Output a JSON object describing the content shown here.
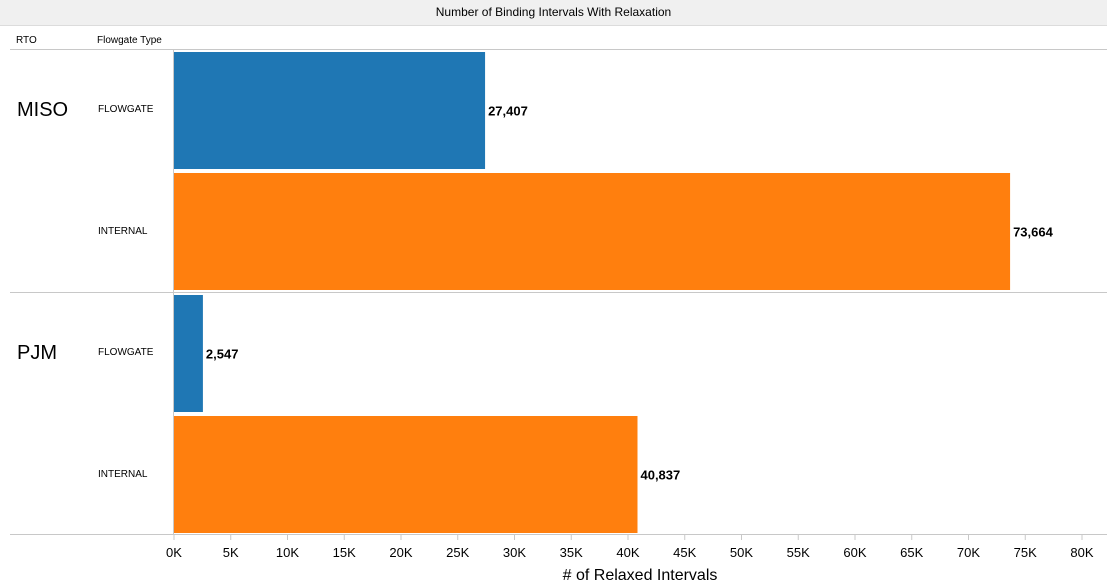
{
  "chart_data": {
    "type": "bar",
    "orientation": "horizontal",
    "title": "Number of Binding Intervals With Relaxation",
    "row_headers": [
      "RTO",
      "Flowgate Type"
    ],
    "groups": [
      {
        "name": "MISO",
        "bars": [
          {
            "category": "FLOWGATE",
            "value": 27407,
            "label": "27,407",
            "color": "#1f77b4"
          },
          {
            "category": "INTERNAL",
            "value": 73664,
            "label": "73,664",
            "color": "#ff7f0e"
          }
        ]
      },
      {
        "name": "PJM",
        "bars": [
          {
            "category": "FLOWGATE",
            "value": 2547,
            "label": "2,547",
            "color": "#1f77b4"
          },
          {
            "category": "INTERNAL",
            "value": 40837,
            "label": "40,837",
            "color": "#ff7f0e"
          }
        ]
      }
    ],
    "xlabel": "# of Relaxed Intervals",
    "xlim": [
      0,
      80000
    ],
    "xticks": [
      0,
      5000,
      10000,
      15000,
      20000,
      25000,
      30000,
      35000,
      40000,
      45000,
      50000,
      55000,
      60000,
      65000,
      70000,
      75000,
      80000
    ],
    "xtick_labels": [
      "0K",
      "5K",
      "10K",
      "15K",
      "20K",
      "25K",
      "30K",
      "35K",
      "40K",
      "45K",
      "50K",
      "55K",
      "60K",
      "65K",
      "70K",
      "75K",
      "80K"
    ],
    "grid": false,
    "legend": "none"
  }
}
